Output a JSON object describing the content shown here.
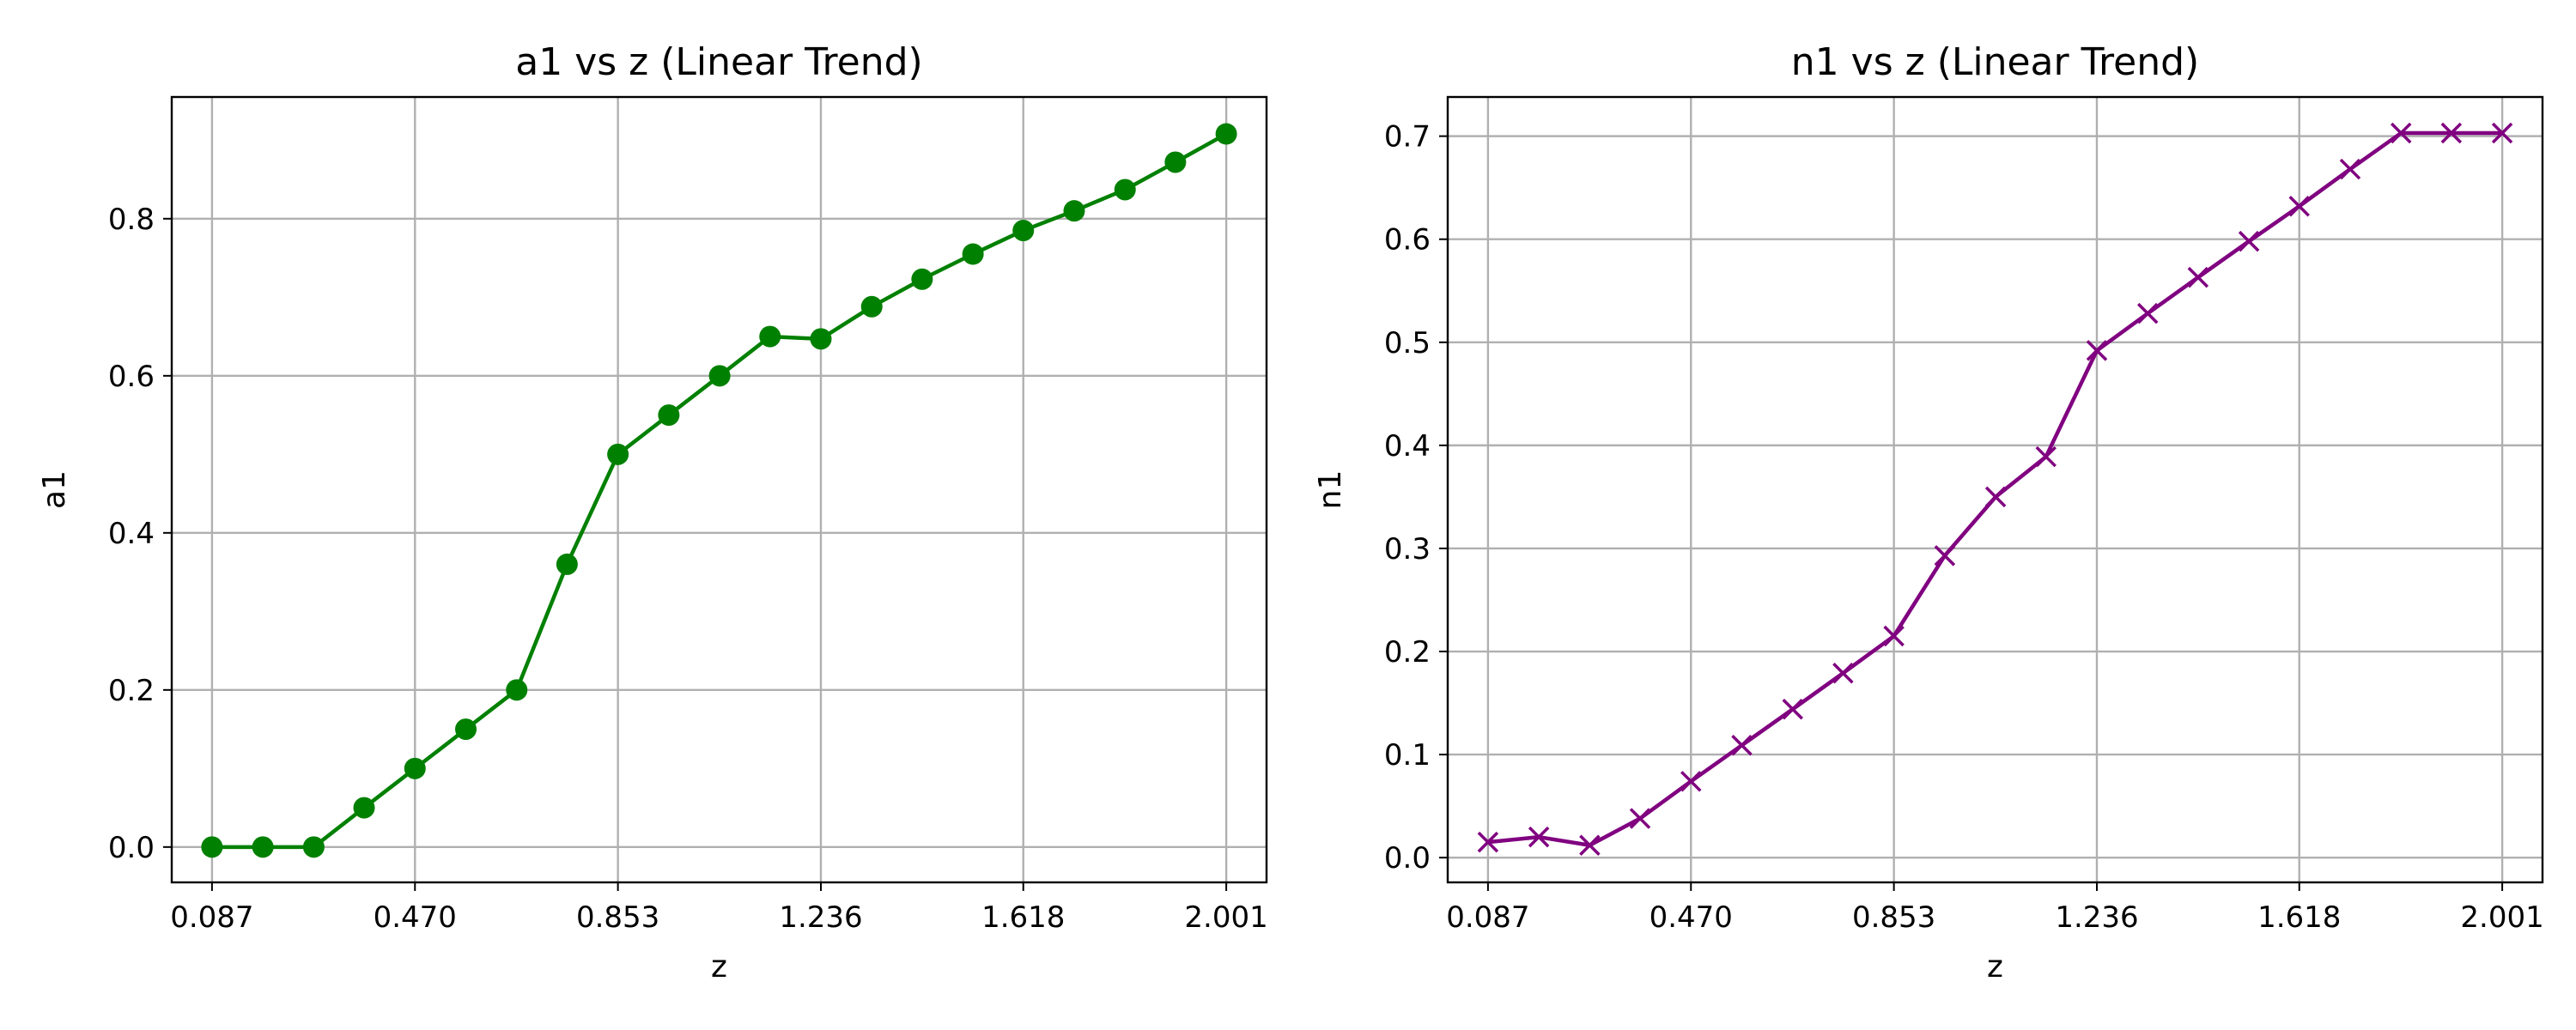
{
  "chart_data": [
    {
      "type": "line",
      "title": "a1 vs z (Linear Trend)",
      "xlabel": "z",
      "ylabel": "a1",
      "grid": true,
      "marker": "circle",
      "color": "#008000",
      "xlim": [
        0.011,
        2.077
      ],
      "ylim": [
        -0.045,
        0.955
      ],
      "xticks": [
        0.087,
        0.47,
        0.853,
        1.236,
        1.618,
        2.001
      ],
      "xtick_labels": [
        "0.087",
        "0.470",
        "0.853",
        "1.236",
        "1.618",
        "2.001"
      ],
      "yticks": [
        0.0,
        0.2,
        0.4,
        0.6,
        0.8
      ],
      "ytick_labels": [
        "0.0",
        "0.2",
        "0.4",
        "0.6",
        "0.8"
      ],
      "x": [
        0.087,
        0.183,
        0.279,
        0.374,
        0.47,
        0.566,
        0.662,
        0.757,
        0.853,
        0.949,
        1.045,
        1.14,
        1.236,
        1.332,
        1.427,
        1.523,
        1.618,
        1.714,
        1.81,
        1.905,
        2.001
      ],
      "y": [
        0.0,
        0.0,
        0.0,
        0.05,
        0.1,
        0.15,
        0.2,
        0.36,
        0.5,
        0.55,
        0.6,
        0.65,
        0.647,
        0.688,
        0.723,
        0.755,
        0.785,
        0.81,
        0.837,
        0.872,
        0.908
      ]
    },
    {
      "type": "line",
      "title": "n1 vs z (Linear Trend)",
      "xlabel": "z",
      "ylabel": "n1",
      "grid": true,
      "marker": "x",
      "color": "#800080",
      "xlim": [
        0.011,
        2.077
      ],
      "ylim": [
        -0.024,
        0.738
      ],
      "xticks": [
        0.087,
        0.47,
        0.853,
        1.236,
        1.618,
        2.001
      ],
      "xtick_labels": [
        "0.087",
        "0.470",
        "0.853",
        "1.236",
        "1.618",
        "2.001"
      ],
      "yticks": [
        0.0,
        0.1,
        0.2,
        0.3,
        0.4,
        0.5,
        0.6,
        0.7
      ],
      "ytick_labels": [
        "0.0",
        "0.1",
        "0.2",
        "0.3",
        "0.4",
        "0.5",
        "0.6",
        "0.7"
      ],
      "x": [
        0.087,
        0.183,
        0.279,
        0.374,
        0.47,
        0.566,
        0.662,
        0.757,
        0.853,
        0.949,
        1.045,
        1.14,
        1.236,
        1.332,
        1.427,
        1.523,
        1.618,
        1.714,
        1.81,
        1.905,
        2.001
      ],
      "y": [
        0.015,
        0.02,
        0.012,
        0.038,
        0.074,
        0.109,
        0.144,
        0.179,
        0.215,
        0.293,
        0.35,
        0.389,
        0.492,
        0.528,
        0.563,
        0.598,
        0.632,
        0.668,
        0.703,
        0.703,
        0.703
      ]
    }
  ]
}
